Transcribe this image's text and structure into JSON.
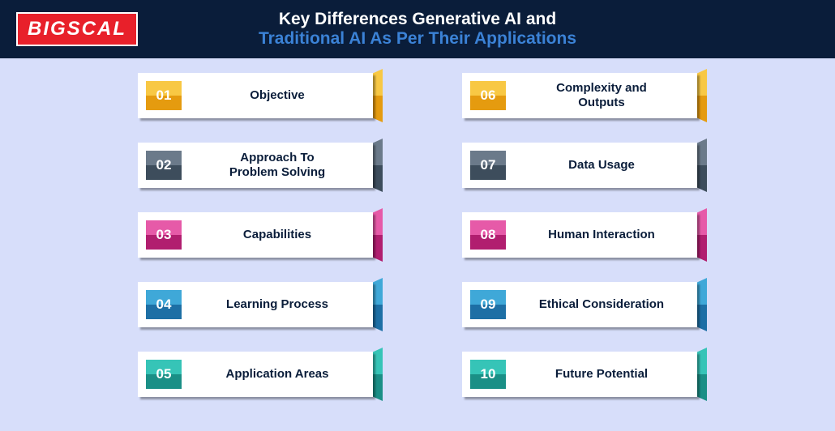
{
  "header": {
    "background": "#0a1d3a",
    "logo_text": "BIGSCAL",
    "logo_bg": "#e8202a",
    "title_line1": "Key Differences Generative AI and",
    "title_line1_color": "#ffffff",
    "title_line2": "Traditional AI As Per Their Applications",
    "title_line2_color": "#3b82d6"
  },
  "content": {
    "background": "#d7defa",
    "label_color": "#0a1d3a",
    "items": [
      {
        "num": "01",
        "label": "Objective",
        "tab_top": "#f8c844",
        "tab_bot": "#e59b0f",
        "num_top": "#f8c844",
        "num_bot": "#e59b0f"
      },
      {
        "num": "02",
        "label": "Approach To\nProblem Solving",
        "tab_top": "#6b7a8a",
        "tab_bot": "#3d4d5c",
        "num_top": "#6b7a8a",
        "num_bot": "#3d4d5c"
      },
      {
        "num": "03",
        "label": "Capabilities",
        "tab_top": "#e65aa8",
        "tab_bot": "#b11e6f",
        "num_top": "#e65aa8",
        "num_bot": "#b11e6f"
      },
      {
        "num": "04",
        "label": "Learning Process",
        "tab_top": "#3fa8d8",
        "tab_bot": "#1d6fa5",
        "num_top": "#3fa8d8",
        "num_bot": "#1d6fa5"
      },
      {
        "num": "05",
        "label": "Application Areas",
        "tab_top": "#36c4b7",
        "tab_bot": "#1a8f86",
        "num_top": "#36c4b7",
        "num_bot": "#1a8f86"
      },
      {
        "num": "06",
        "label": "Complexity and\nOutputs",
        "tab_top": "#f8c844",
        "tab_bot": "#e59b0f",
        "num_top": "#f8c844",
        "num_bot": "#e59b0f"
      },
      {
        "num": "07",
        "label": "Data Usage",
        "tab_top": "#6b7a8a",
        "tab_bot": "#3d4d5c",
        "num_top": "#6b7a8a",
        "num_bot": "#3d4d5c"
      },
      {
        "num": "08",
        "label": "Human Interaction",
        "tab_top": "#e65aa8",
        "tab_bot": "#b11e6f",
        "num_top": "#e65aa8",
        "num_bot": "#b11e6f"
      },
      {
        "num": "09",
        "label": "Ethical Consideration",
        "tab_top": "#3fa8d8",
        "tab_bot": "#1d6fa5",
        "num_top": "#3fa8d8",
        "num_bot": "#1d6fa5"
      },
      {
        "num": "10",
        "label": "Future Potential",
        "tab_top": "#36c4b7",
        "tab_bot": "#1a8f86",
        "num_top": "#36c4b7",
        "num_bot": "#1a8f86"
      }
    ]
  }
}
